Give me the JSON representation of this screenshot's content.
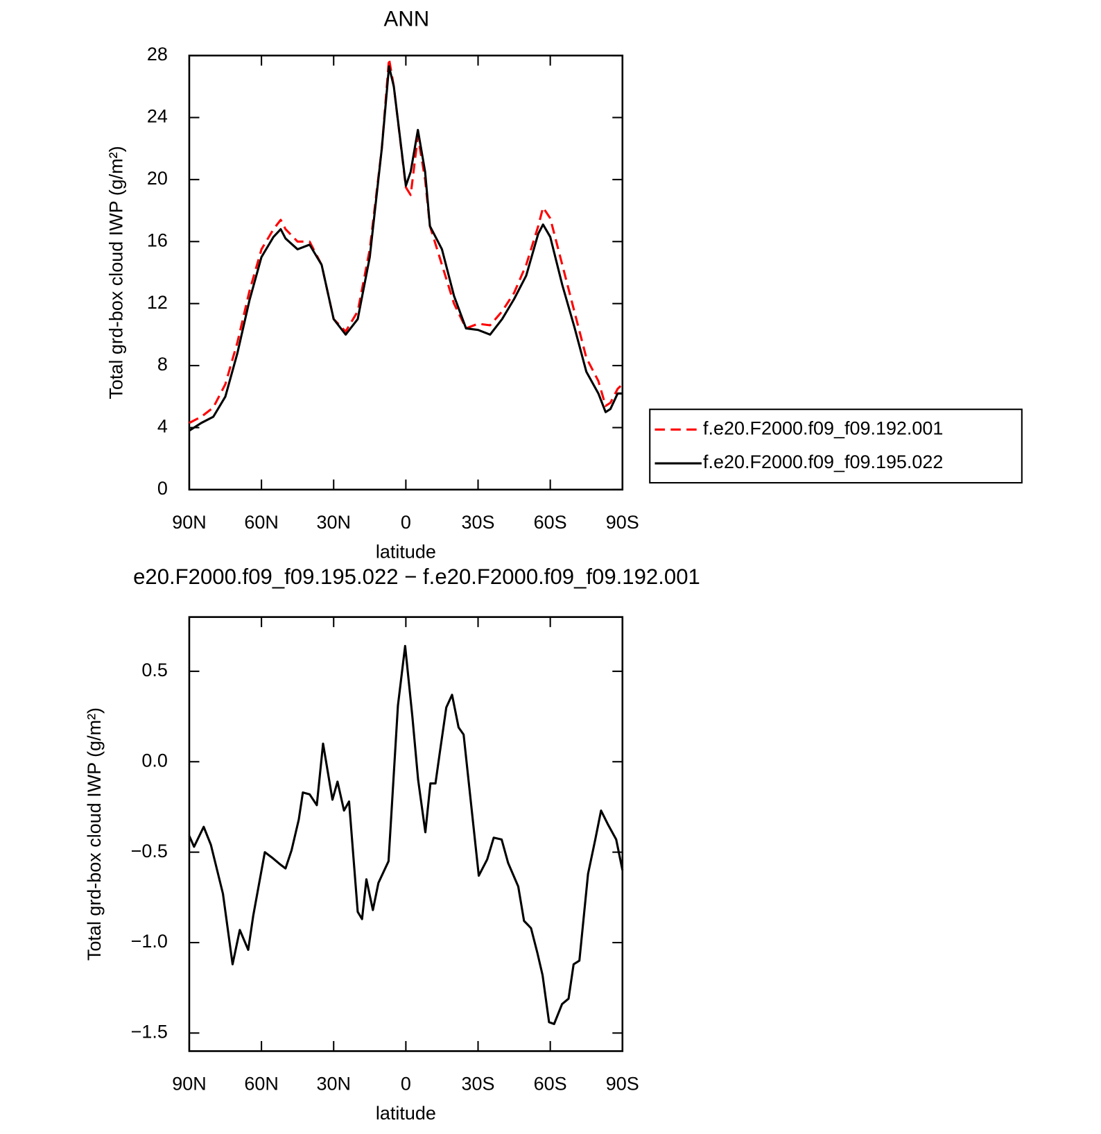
{
  "chart_data": [
    {
      "type": "line",
      "title": "ANN",
      "xlabel": "latitude",
      "ylabel": "Total grd-box cloud IWP (g/m²)",
      "x": [
        90,
        85,
        80,
        75,
        70,
        65,
        60,
        55,
        52,
        50,
        45,
        40,
        35,
        30,
        25,
        20,
        15,
        10,
        7,
        5,
        0,
        -2,
        -5,
        -8,
        -10,
        -15,
        -20,
        -25,
        -30,
        -35,
        -40,
        -45,
        -50,
        -55,
        -57,
        -60,
        -65,
        -70,
        -75,
        -80,
        -83,
        -85,
        -88,
        -90
      ],
      "series": [
        {
          "name": "f.e20.F2000.f09_f09.192.001",
          "color": "#ff0000",
          "dash": "dashed",
          "values": [
            4.3,
            4.7,
            5.3,
            6.8,
            9.5,
            12.8,
            15.5,
            16.8,
            17.4,
            16.8,
            16.0,
            16.0,
            14.5,
            11.0,
            10.2,
            11.5,
            15.5,
            22,
            27.8,
            26,
            19.5,
            19.0,
            22.8,
            20,
            17,
            14.5,
            12,
            10.4,
            10.7,
            10.6,
            11.5,
            12.7,
            14.5,
            17.0,
            18.2,
            17.5,
            14.5,
            11.5,
            8.5,
            7.0,
            5.4,
            5.6,
            6.5,
            6.8
          ]
        },
        {
          "name": "f.e20.F2000.f09_f09.195.022",
          "color": "#000000",
          "dash": "solid",
          "values": [
            3.8,
            4.3,
            4.7,
            6.0,
            8.8,
            12.2,
            15.0,
            16.3,
            16.8,
            16.2,
            15.5,
            15.8,
            14.5,
            11.0,
            10.0,
            11.0,
            15,
            22,
            27.3,
            26,
            19.6,
            20.5,
            23.2,
            20.5,
            17,
            15.5,
            12.5,
            10.4,
            10.3,
            10.0,
            11,
            12.3,
            13.8,
            16.5,
            17.1,
            16.3,
            13.2,
            10.5,
            7.6,
            6.2,
            5.0,
            5.2,
            6.2,
            6.2
          ]
        }
      ],
      "xlim": [
        90,
        -90
      ],
      "xticks": [
        {
          "value": 90,
          "label": "90N"
        },
        {
          "value": 60,
          "label": "60N"
        },
        {
          "value": 30,
          "label": "30N"
        },
        0,
        {
          "value": -30,
          "label": "30S"
        },
        {
          "value": -60,
          "label": "60S"
        },
        {
          "value": -90,
          "label": "90S"
        }
      ],
      "ylim": [
        0,
        28
      ],
      "yticks": [
        0,
        4,
        8,
        12,
        16,
        20,
        24,
        28
      ],
      "legend": "right"
    },
    {
      "type": "line",
      "title": "e20.F2000.f09_f09.195.022 − f.e20.F2000.f09_f09.192.001",
      "xlabel": "latitude",
      "ylabel": "Total grd-box cloud IWP (g/m²)",
      "x": [
        90,
        88,
        84,
        81,
        76,
        72,
        69,
        65.5,
        63.4,
        58.6,
        55.6,
        52,
        50,
        47.5,
        44.5,
        42.8,
        40,
        37,
        34.4,
        30.5,
        28.4,
        25.7,
        23.6,
        20,
        18.2,
        16.4,
        13.7,
        11.4,
        7.2,
        3.3,
        0.3,
        -2.7,
        -5.1,
        -8.1,
        -10.2,
        -12.3,
        -14.1,
        -16.8,
        -19.2,
        -21.9,
        -24,
        -30.3,
        -33.8,
        -36.5,
        -39.8,
        -42.5,
        -46.7,
        -49.1,
        -52,
        -54.7,
        -56.8,
        -59.5,
        -61.6,
        -64.9,
        -67.6,
        -69.7,
        -72.1,
        -75.7,
        -78.7,
        -81.1,
        -84.1,
        -87.4,
        -90
      ],
      "series": [
        {
          "color": "#000000",
          "dash": "solid",
          "values": [
            -0.41,
            -0.47,
            -0.36,
            -0.46,
            -0.73,
            -1.12,
            -0.93,
            -1.04,
            -0.85,
            -0.5,
            -0.53,
            -0.57,
            -0.59,
            -0.49,
            -0.32,
            -0.17,
            -0.18,
            -0.24,
            0.1,
            -0.21,
            -0.11,
            -0.27,
            -0.22,
            -0.83,
            -0.87,
            -0.65,
            -0.82,
            -0.67,
            -0.55,
            0.31,
            0.64,
            0.25,
            -0.1,
            -0.39,
            -0.12,
            -0.12,
            0.05,
            0.3,
            0.37,
            0.19,
            0.15,
            -0.63,
            -0.54,
            -0.42,
            -0.43,
            -0.56,
            -0.69,
            -0.88,
            -0.92,
            -1.06,
            -1.18,
            -1.44,
            -1.45,
            -1.34,
            -1.31,
            -1.12,
            -1.1,
            -0.62,
            -0.43,
            -0.27,
            -0.35,
            -0.43,
            -0.6
          ]
        }
      ],
      "xlim": [
        90,
        -90
      ],
      "xticks": [
        {
          "value": 90,
          "label": "90N"
        },
        {
          "value": 60,
          "label": "60N"
        },
        {
          "value": 30,
          "label": "30N"
        },
        0,
        {
          "value": -30,
          "label": "30S"
        },
        {
          "value": -60,
          "label": "60S"
        },
        {
          "value": -90,
          "label": "90S"
        }
      ],
      "ylim": [
        -1.6,
        0.8
      ],
      "yticks": [
        {
          "value": -1.5,
          "label": "−1.5"
        },
        {
          "value": -1,
          "label": "−1.0"
        },
        {
          "value": -0.5,
          "label": "−0.5"
        },
        {
          "value": 0,
          "label": "0.0"
        },
        0.5
      ]
    }
  ]
}
